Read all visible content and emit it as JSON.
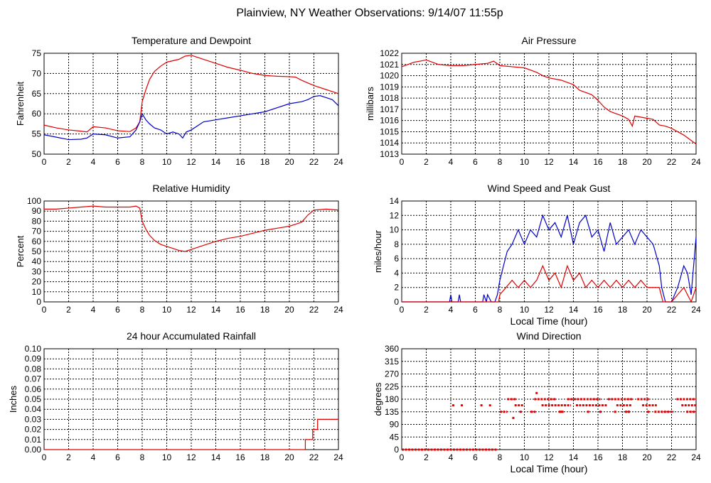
{
  "page_title": "Plainview, NY Weather Observations: 9/14/07 11:55p",
  "colors": {
    "red": "#e00000",
    "blue": "#0000cc",
    "grid": "#000000"
  },
  "chart_data": [
    {
      "id": "temp",
      "type": "line",
      "title": "Temperature and Dewpoint",
      "xlabel": "",
      "ylabel": "Fahrenheit",
      "xlim": [
        0,
        24
      ],
      "ylim": [
        50,
        75
      ],
      "xticks": [
        0,
        2,
        4,
        6,
        8,
        10,
        12,
        14,
        16,
        18,
        20,
        22,
        24
      ],
      "yticks": [
        50,
        55,
        60,
        65,
        70,
        75
      ],
      "series": [
        {
          "color": "#e00000",
          "x": [
            0,
            1,
            2,
            3,
            3.5,
            4,
            5,
            6,
            7,
            7.5,
            7.8,
            8,
            8.3,
            8.6,
            9,
            9.5,
            10,
            11,
            11.5,
            12,
            12.5,
            13,
            14,
            15,
            16,
            17,
            18,
            19,
            20,
            20.5,
            21,
            22,
            23,
            24
          ],
          "y": [
            57.2,
            56.5,
            56,
            55.7,
            55.5,
            56.8,
            56.5,
            55.8,
            55.6,
            56.5,
            58,
            63,
            66,
            68.5,
            70.5,
            71.8,
            72.8,
            73.5,
            74.3,
            74.5,
            74,
            73.5,
            72.5,
            71.5,
            70.8,
            70,
            69.5,
            69.3,
            69.2,
            69.1,
            68.3,
            67,
            66,
            65
          ]
        },
        {
          "color": "#0000cc",
          "x": [
            0,
            1,
            2,
            3,
            3.5,
            4,
            5,
            6,
            7,
            7.5,
            7.8,
            8,
            8.3,
            8.6,
            9,
            9.5,
            10,
            10.5,
            11,
            11.3,
            11.6,
            12,
            12.5,
            13,
            14,
            15,
            16,
            17,
            18,
            19,
            20,
            21,
            21.5,
            22,
            22.5,
            23,
            23.5,
            24
          ],
          "y": [
            54.8,
            54.2,
            53.6,
            53.7,
            54,
            55,
            54.8,
            54,
            54.3,
            56,
            58,
            60,
            58.5,
            57.5,
            56.5,
            56,
            55,
            55.5,
            55,
            54,
            55.5,
            56,
            57,
            58,
            58.5,
            59,
            59.5,
            60,
            60.5,
            61.5,
            62.5,
            63,
            63.5,
            64.3,
            64.5,
            64,
            63.5,
            62
          ]
        }
      ]
    },
    {
      "id": "pressure",
      "type": "line",
      "title": "Air Pressure",
      "xlabel": "",
      "ylabel": "millibars",
      "xlim": [
        0,
        24
      ],
      "ylim": [
        1013,
        1022
      ],
      "xticks": [
        0,
        2,
        4,
        6,
        8,
        10,
        12,
        14,
        16,
        18,
        20,
        22,
        24
      ],
      "yticks": [
        1013,
        1014,
        1015,
        1016,
        1017,
        1018,
        1019,
        1020,
        1021,
        1022
      ],
      "series": [
        {
          "color": "#e00000",
          "x": [
            0,
            0.5,
            1,
            1.5,
            2,
            2.5,
            3,
            4,
            5,
            6,
            7,
            7.5,
            8,
            9,
            10,
            11,
            11.5,
            12,
            13,
            14,
            14.5,
            15,
            15.5,
            16,
            16.5,
            17,
            17.5,
            18,
            18.5,
            18.8,
            19,
            20,
            20.5,
            21,
            21.5,
            22,
            22.5,
            23,
            23.5,
            24
          ],
          "y": [
            1020.8,
            1021,
            1021.2,
            1021.3,
            1021.4,
            1021.2,
            1021,
            1020.9,
            1020.9,
            1021,
            1021.1,
            1021.3,
            1020.9,
            1020.8,
            1020.7,
            1020.3,
            1020,
            1019.8,
            1019.6,
            1019.2,
            1018.7,
            1018.5,
            1018.3,
            1017.8,
            1017.2,
            1016.8,
            1016.6,
            1016.4,
            1016.1,
            1015.5,
            1016.4,
            1016.2,
            1016.1,
            1015.6,
            1015.5,
            1015.3,
            1015,
            1014.7,
            1014.3,
            1013.9
          ]
        }
      ]
    },
    {
      "id": "humidity",
      "type": "line",
      "title": "Relative Humidity",
      "xlabel": "",
      "ylabel": "Percent",
      "xlim": [
        0,
        24
      ],
      "ylim": [
        0,
        100
      ],
      "xticks": [
        0,
        2,
        4,
        6,
        8,
        10,
        12,
        14,
        16,
        18,
        20,
        22,
        24
      ],
      "yticks": [
        0,
        10,
        20,
        30,
        40,
        50,
        60,
        70,
        80,
        90,
        100
      ],
      "series": [
        {
          "color": "#e00000",
          "x": [
            0,
            1,
            2,
            3,
            4,
            5,
            6,
            7,
            7.5,
            7.8,
            8,
            8.3,
            8.6,
            9,
            9.5,
            10,
            10.5,
            11,
            11.5,
            12,
            13,
            14,
            15,
            16,
            17,
            18,
            19,
            20,
            20.5,
            21,
            21.5,
            22,
            23,
            24
          ],
          "y": [
            92,
            92,
            93,
            94,
            95,
            94,
            94,
            94,
            95,
            93,
            80,
            72,
            66,
            61,
            57,
            55,
            53,
            51,
            50,
            52,
            56,
            60,
            63,
            65,
            68,
            71,
            73,
            75,
            77,
            79,
            86,
            91,
            92,
            91
          ]
        }
      ]
    },
    {
      "id": "wind",
      "type": "line",
      "title": "Wind Speed and Peak Gust",
      "xlabel": "Local Time (hour)",
      "ylabel": "miles/hour",
      "xlim": [
        0,
        24
      ],
      "ylim": [
        0,
        14
      ],
      "xticks": [
        0,
        2,
        4,
        6,
        8,
        10,
        12,
        14,
        16,
        18,
        20,
        22,
        24
      ],
      "yticks": [
        0,
        2,
        4,
        6,
        8,
        10,
        12,
        14
      ],
      "series": [
        {
          "color": "#0000cc",
          "x": [
            0,
            3.9,
            4,
            4.1,
            4.6,
            4.7,
            4.8,
            6.6,
            6.7,
            6.9,
            7,
            7.3,
            7.6,
            7.8,
            8,
            8.3,
            8.6,
            9,
            9.5,
            10,
            10.5,
            11,
            11.5,
            12,
            12.5,
            13,
            13.5,
            14,
            14.5,
            15,
            15.5,
            16,
            16.5,
            17,
            17.5,
            18,
            18.5,
            19,
            19.5,
            20,
            20.5,
            21,
            21.2,
            21.5,
            22,
            22.5,
            23,
            23.3,
            23.6,
            24
          ],
          "y": [
            0,
            0,
            1,
            0,
            0,
            1,
            0,
            0,
            1,
            0,
            1,
            0,
            0,
            1,
            3,
            5,
            7,
            8,
            10,
            8,
            10,
            9,
            12,
            10,
            11,
            9,
            12,
            8,
            11,
            12,
            9,
            10,
            7,
            11,
            8,
            9,
            10,
            8,
            10,
            9,
            8,
            5,
            2,
            0,
            0,
            2,
            5,
            4,
            1,
            9
          ]
        },
        {
          "color": "#e00000",
          "x": [
            0,
            7.9,
            8,
            8.5,
            9,
            9.5,
            10,
            10.5,
            11,
            11.5,
            12,
            12.5,
            13,
            13.5,
            14,
            14.5,
            15,
            15.5,
            16,
            16.5,
            17,
            17.5,
            18,
            18.5,
            19,
            19.5,
            20,
            20.5,
            21,
            21.3,
            21.5,
            22,
            22.5,
            23,
            23.3,
            23.6,
            24
          ],
          "y": [
            0,
            0,
            1,
            2,
            3,
            2,
            3,
            2,
            3,
            5,
            3,
            4,
            2,
            5,
            3,
            4,
            2,
            3,
            2,
            3,
            2,
            3,
            2,
            3,
            2,
            3,
            2,
            2,
            2,
            0,
            0,
            0,
            1,
            2,
            1,
            0,
            2
          ]
        }
      ]
    },
    {
      "id": "rain",
      "type": "line",
      "title": "24 hour Accumulated Rainfall",
      "xlabel": "",
      "ylabel": "Inches",
      "xlim": [
        0,
        24
      ],
      "ylim": [
        0,
        0.1
      ],
      "xticks": [
        0,
        2,
        4,
        6,
        8,
        10,
        12,
        14,
        16,
        18,
        20,
        22,
        24
      ],
      "yticks": [
        0.0,
        0.01,
        0.02,
        0.03,
        0.04,
        0.05,
        0.06,
        0.07,
        0.08,
        0.09,
        0.1
      ],
      "series": [
        {
          "color": "#e00000",
          "step": true,
          "x": [
            0,
            21,
            21.3,
            21.6,
            21.9,
            22.3,
            24
          ],
          "y": [
            0,
            0.0,
            0.01,
            0.01,
            0.02,
            0.03,
            0.03
          ]
        }
      ]
    },
    {
      "id": "direction",
      "type": "scatter",
      "title": "Wind Direction",
      "xlabel": "Local Time (hour)",
      "ylabel": "degrees",
      "xlim": [
        0,
        24
      ],
      "ylim": [
        0,
        360
      ],
      "xticks": [
        0,
        2,
        4,
        6,
        8,
        10,
        12,
        14,
        16,
        18,
        20,
        22,
        24
      ],
      "yticks": [
        0,
        45,
        90,
        135,
        180,
        225,
        270,
        315,
        360
      ],
      "series": [
        {
          "color": "#e00000",
          "segments": [
            [
              0,
              7.8,
              0
            ],
            [
              8,
              8.6,
              135
            ],
            [
              8.6,
              9.4,
              180
            ],
            [
              9.2,
              10,
              158
            ],
            [
              10.5,
              10.9,
              135
            ],
            [
              10.8,
              12.6,
              180
            ],
            [
              11.4,
              13.8,
              158
            ],
            [
              12.8,
              13.2,
              135
            ],
            [
              13.5,
              16.2,
              180
            ],
            [
              14.2,
              16.8,
              158
            ],
            [
              16.8,
              18.8,
              180
            ],
            [
              17.5,
              18.8,
              158
            ],
            [
              18.2,
              18.6,
              135
            ],
            [
              19.2,
              20.2,
              180
            ],
            [
              19.6,
              20.8,
              158
            ],
            [
              20.6,
              22.2,
              135
            ],
            [
              22.4,
              24,
              180
            ],
            [
              22.8,
              24,
              158
            ],
            [
              23.2,
              24,
              135
            ]
          ],
          "points": [
            [
              4.2,
              158
            ],
            [
              4.9,
              158
            ],
            [
              6.5,
              158
            ],
            [
              7.2,
              158
            ],
            [
              9.1,
              113
            ],
            [
              9.7,
              135
            ],
            [
              11.0,
              202
            ],
            [
              13.0,
              135
            ],
            [
              15.2,
              135
            ],
            [
              16.2,
              135
            ],
            [
              17.4,
              135
            ],
            [
              18.5,
              135
            ],
            [
              20.1,
              135
            ]
          ]
        }
      ]
    }
  ]
}
